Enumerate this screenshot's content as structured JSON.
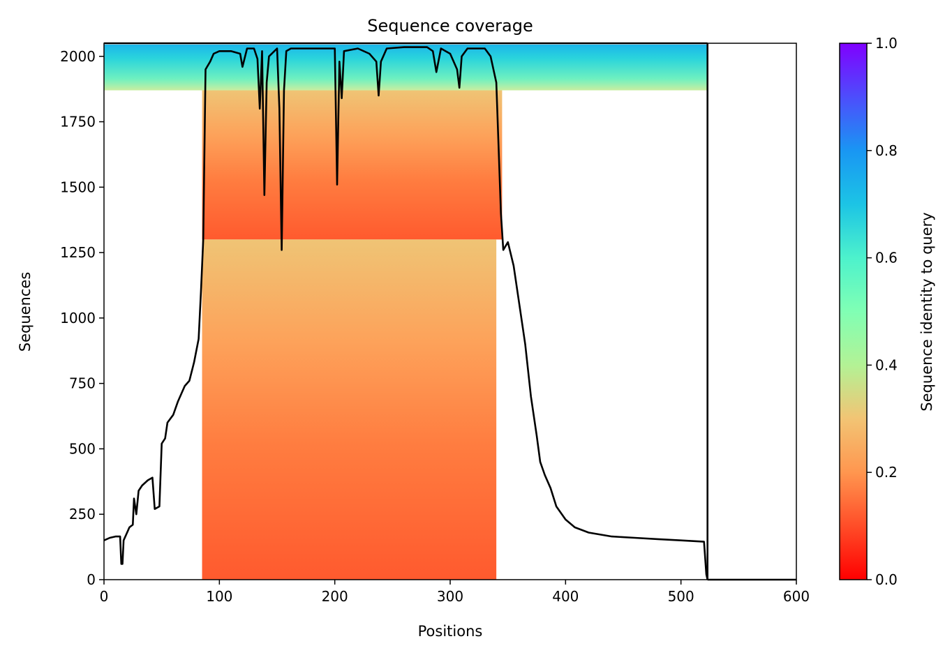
{
  "chart_data": {
    "type": "heatmap",
    "title": "Sequence coverage",
    "xlabel": "Positions",
    "ylabel": "Sequences",
    "xlim": [
      0,
      600
    ],
    "ylim": [
      0,
      2050
    ],
    "xticks": [
      0,
      100,
      200,
      300,
      400,
      500,
      600
    ],
    "yticks": [
      0,
      250,
      500,
      750,
      1000,
      1250,
      1500,
      1750,
      2000
    ],
    "query_length": 523,
    "colorbar": {
      "label": "Sequence identity to query",
      "range": [
        0.0,
        1.0
      ],
      "ticks": [
        "0.0",
        "0.2",
        "0.4",
        "0.6",
        "0.8",
        "1.0"
      ],
      "colormap": "rainbow_r"
    },
    "coverage_blocks": [
      {
        "y_range": [
          1870,
          2045
        ],
        "x_range": [
          0,
          523
        ],
        "identity": 0.62
      },
      {
        "y_range": [
          1300,
          1870
        ],
        "x_range": [
          85,
          345
        ],
        "identity": 0.27
      },
      {
        "y_range": [
          0,
          1300
        ],
        "x_range": [
          85,
          340
        ],
        "identity": 0.17
      }
    ],
    "coverage_line": {
      "name": "coverage",
      "points": [
        [
          0,
          150
        ],
        [
          5,
          160
        ],
        [
          10,
          165
        ],
        [
          14,
          165
        ],
        [
          15,
          60
        ],
        [
          16,
          60
        ],
        [
          17,
          150
        ],
        [
          20,
          180
        ],
        [
          22,
          200
        ],
        [
          25,
          210
        ],
        [
          26,
          310
        ],
        [
          28,
          250
        ],
        [
          30,
          340
        ],
        [
          33,
          360
        ],
        [
          38,
          380
        ],
        [
          42,
          390
        ],
        [
          44,
          270
        ],
        [
          48,
          280
        ],
        [
          50,
          520
        ],
        [
          53,
          540
        ],
        [
          55,
          600
        ],
        [
          60,
          630
        ],
        [
          64,
          680
        ],
        [
          68,
          720
        ],
        [
          70,
          740
        ],
        [
          74,
          760
        ],
        [
          78,
          830
        ],
        [
          82,
          920
        ],
        [
          84,
          1100
        ],
        [
          86,
          1300
        ],
        [
          88,
          1950
        ],
        [
          92,
          1980
        ],
        [
          95,
          2010
        ],
        [
          100,
          2020
        ],
        [
          110,
          2020
        ],
        [
          118,
          2010
        ],
        [
          120,
          1960
        ],
        [
          124,
          2030
        ],
        [
          130,
          2030
        ],
        [
          133,
          1990
        ],
        [
          135,
          1800
        ],
        [
          137,
          2020
        ],
        [
          139,
          1470
        ],
        [
          141,
          1900
        ],
        [
          143,
          2000
        ],
        [
          150,
          2030
        ],
        [
          152,
          1800
        ],
        [
          154,
          1260
        ],
        [
          156,
          1870
        ],
        [
          158,
          2020
        ],
        [
          162,
          2030
        ],
        [
          170,
          2030
        ],
        [
          180,
          2030
        ],
        [
          190,
          2030
        ],
        [
          200,
          2030
        ],
        [
          202,
          1510
        ],
        [
          204,
          1980
        ],
        [
          206,
          1840
        ],
        [
          208,
          2020
        ],
        [
          220,
          2030
        ],
        [
          230,
          2010
        ],
        [
          236,
          1980
        ],
        [
          238,
          1850
        ],
        [
          240,
          1980
        ],
        [
          245,
          2030
        ],
        [
          260,
          2035
        ],
        [
          280,
          2035
        ],
        [
          285,
          2020
        ],
        [
          288,
          1940
        ],
        [
          292,
          2030
        ],
        [
          300,
          2010
        ],
        [
          306,
          1950
        ],
        [
          308,
          1880
        ],
        [
          310,
          2000
        ],
        [
          315,
          2030
        ],
        [
          330,
          2030
        ],
        [
          335,
          2000
        ],
        [
          340,
          1900
        ],
        [
          344,
          1400
        ],
        [
          346,
          1260
        ],
        [
          350,
          1290
        ],
        [
          355,
          1200
        ],
        [
          360,
          1050
        ],
        [
          365,
          900
        ],
        [
          370,
          700
        ],
        [
          375,
          550
        ],
        [
          378,
          450
        ],
        [
          382,
          400
        ],
        [
          387,
          350
        ],
        [
          392,
          280
        ],
        [
          400,
          230
        ],
        [
          408,
          200
        ],
        [
          420,
          180
        ],
        [
          440,
          165
        ],
        [
          460,
          160
        ],
        [
          480,
          155
        ],
        [
          500,
          150
        ],
        [
          520,
          145
        ],
        [
          522,
          20
        ],
        [
          523,
          0
        ]
      ]
    }
  }
}
